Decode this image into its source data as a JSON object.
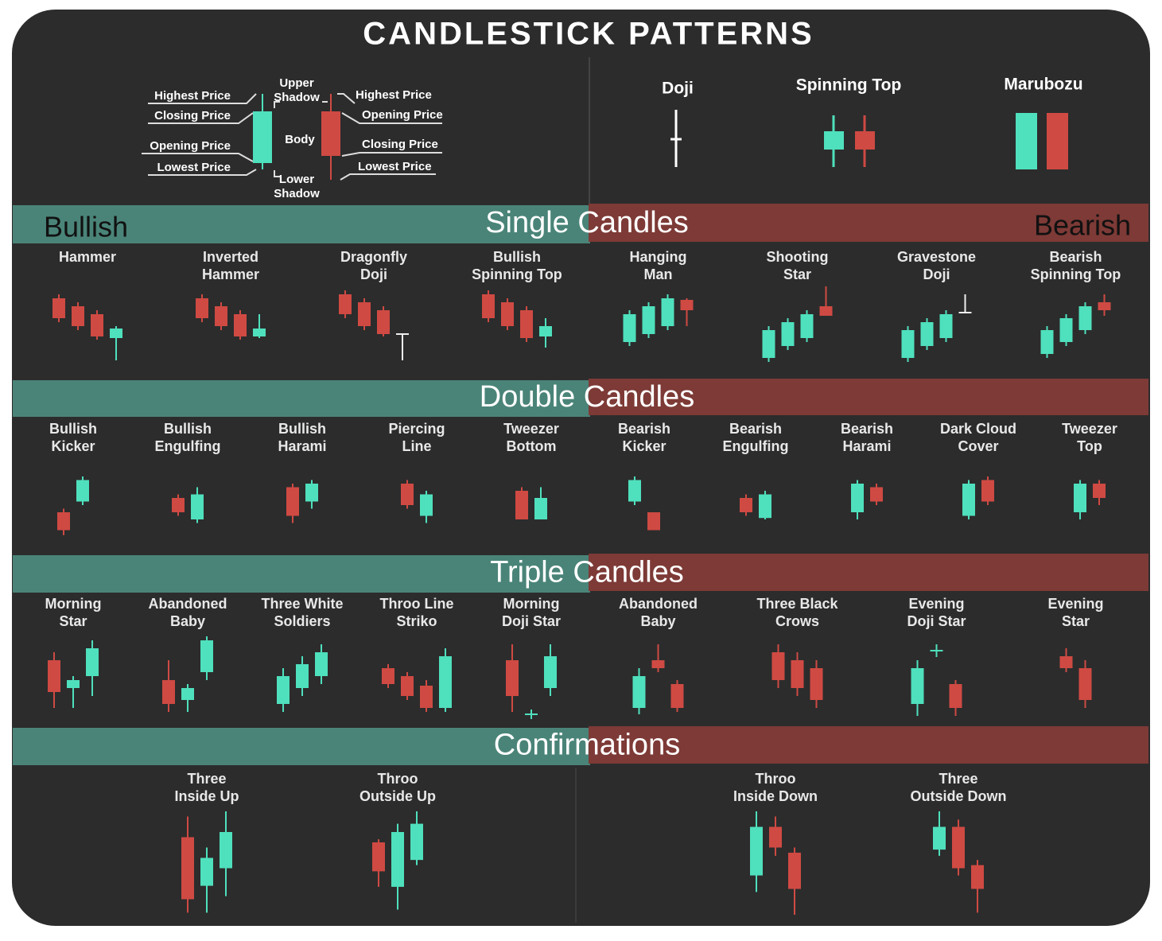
{
  "title": "CANDLESTICK PATTERNS",
  "anatomy": {
    "bullish_labels": [
      "Highest Price",
      "Closing Price",
      "Opening Price",
      "Lowest Price"
    ],
    "upper_shadow": [
      "Upper",
      "Shadow"
    ],
    "body": "Body",
    "lower_shadow": [
      "Lower",
      "Shadow"
    ],
    "bearish_labels": [
      "Highest Price",
      "Opening Price",
      "Closing Price",
      "Lowest Price"
    ]
  },
  "basics": [
    "Doji",
    "Spinning Top",
    "Marubozu"
  ],
  "sections": [
    {
      "title": "Single Candles",
      "bullish_label": "Bullish",
      "bearish_label": "Bearish",
      "bullish": [
        [
          "Hammer"
        ],
        [
          "Inverted",
          "Hammer"
        ],
        [
          "Dragonfly",
          "Doji"
        ],
        [
          "Bullish",
          "Spinning Top"
        ]
      ],
      "bearish": [
        [
          "Hanging",
          "Man"
        ],
        [
          "Shooting",
          "Star"
        ],
        [
          "Gravestone",
          "Doji"
        ],
        [
          "Bearish",
          "Spinning Top"
        ]
      ]
    },
    {
      "title": "Double Candles",
      "bullish": [
        [
          "Bullish",
          "Kicker"
        ],
        [
          "Bullish",
          "Engulfing"
        ],
        [
          "Bullish",
          "Harami"
        ],
        [
          "Piercing",
          "Line"
        ],
        [
          "Tweezer",
          "Bottom"
        ]
      ],
      "bearish": [
        [
          "Bearish",
          "Kicker"
        ],
        [
          "Bearish",
          "Engulfing"
        ],
        [
          "Bearish",
          "Harami"
        ],
        [
          "Dark Cloud",
          "Cover"
        ],
        [
          "Tweezer",
          "Top"
        ]
      ]
    },
    {
      "title": "Triple Candles",
      "bullish": [
        [
          "Morning",
          "Star"
        ],
        [
          "Abandoned",
          "Baby"
        ],
        [
          "Three White",
          "Soldiers"
        ],
        [
          "Throo Line",
          "Striko"
        ],
        [
          "Morning",
          "Doji Star"
        ]
      ],
      "bearish": [
        [
          "Abandoned",
          "Baby"
        ],
        [
          "Three Black",
          "Crows"
        ],
        [
          "Evening",
          "Doji Star"
        ],
        [
          "Evening",
          "Star"
        ]
      ]
    },
    {
      "title": "Confirmations",
      "bullish": [
        [
          "Three",
          "Inside Up"
        ],
        [
          "Throo",
          "Outside Up"
        ]
      ],
      "bearish": [
        [
          "Throo",
          "Inside Down"
        ],
        [
          "Three",
          "Outside Down"
        ]
      ]
    }
  ]
}
